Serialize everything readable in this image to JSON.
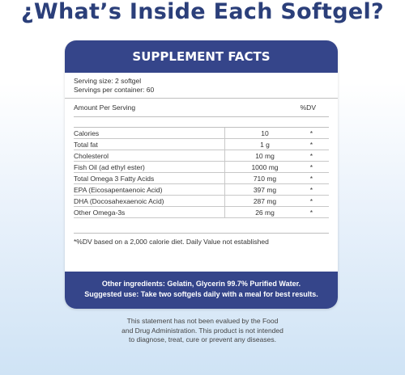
{
  "heading": "¿What’s Inside Each Softgel?",
  "facts": {
    "title": "SUPPLEMENT FACTS",
    "serving_size": "Serving size: 2 softgel",
    "servings_per_container": "Servings per container: 60",
    "amount_per_serving": "Amount Per Serving",
    "dv_header": "%DV",
    "rows": [
      {
        "name": "Calories",
        "amount": "10",
        "dv": "*"
      },
      {
        "name": "Total fat",
        "amount": "1 g",
        "dv": "*"
      },
      {
        "name": "Cholesterol",
        "amount": "10 mg",
        "dv": "*"
      },
      {
        "name": "Fish Oil (ad ethyl ester)",
        "amount": "1000 mg",
        "dv": "*"
      },
      {
        "name": "Total Omega 3 Fatty Acids",
        "amount": "710 mg",
        "dv": "*"
      },
      {
        "name": "EPA (Eicosapentaenoic Acid)",
        "amount": "397 mg",
        "dv": "*"
      },
      {
        "name": "DHA (Docosahexaenoic Acid)",
        "amount": "287 mg",
        "dv": "*"
      },
      {
        "name": "Other Omega-3s",
        "amount": "26 mg",
        "dv": "*"
      }
    ],
    "footnote": "*%DV based on a 2,000 calorie diet. Daily Value not established",
    "other_ingredients": "Other ingredients: Gelatin, Glycerin 99.7% Purified Water.",
    "suggested_use": "Suggested use: Take two softgels daily with a meal for best results."
  },
  "disclaimer": [
    "This statement has not been evalued by the Food",
    "and Drug Administration. This product is not intended",
    "to diagnose, treat, cure or prevent any diseases."
  ]
}
